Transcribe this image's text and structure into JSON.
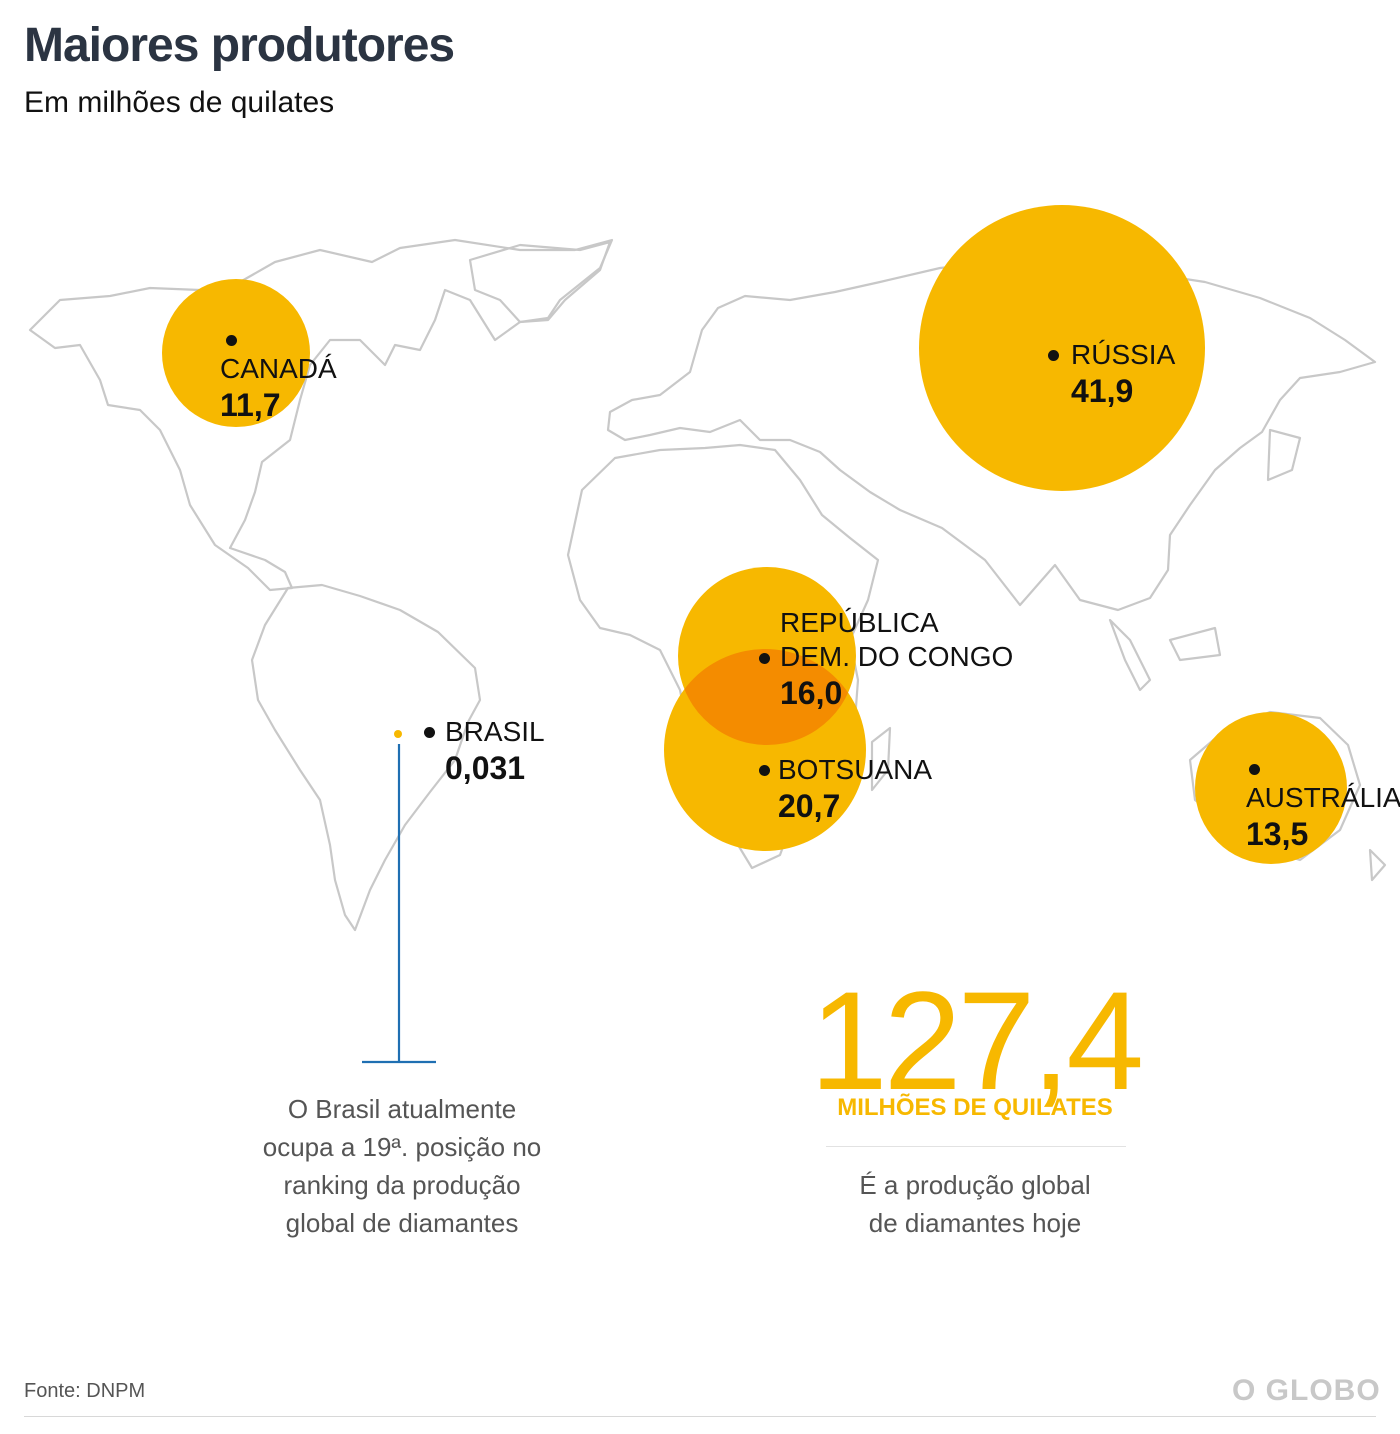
{
  "header": {
    "title": "Maiores produtores",
    "subtitle": "Em milhões de quilates"
  },
  "colors": {
    "bubble": "#f7b800",
    "overlap": "#f48c00",
    "land_outline": "#c8c8c8",
    "leader_line": "#1f6fb2",
    "brand_gray": "#c8c8c8"
  },
  "unit": "milhões de quilates",
  "producers": [
    {
      "id": "canada",
      "name_lines": [
        "CANADÁ"
      ],
      "value": "11,7"
    },
    {
      "id": "russia",
      "name_lines": [
        "RÚSSIA"
      ],
      "value": "41,9"
    },
    {
      "id": "congo",
      "name_lines": [
        "REPÚBLICA",
        "DEM. DO CONGO"
      ],
      "value": "16,0"
    },
    {
      "id": "botsuana",
      "name_lines": [
        "BOTSUANA"
      ],
      "value": "20,7"
    },
    {
      "id": "australia",
      "name_lines": [
        "AUSTRÁLIA"
      ],
      "value": "13,5"
    },
    {
      "id": "brasil",
      "name_lines": [
        "BRASIL"
      ],
      "value": "0,031"
    }
  ],
  "brasil_note": {
    "lines": [
      "O Brasil atualmente",
      "ocupa a 19ª. posição no",
      "ranking da produção",
      "global de diamantes"
    ]
  },
  "global_total": {
    "value": "127,4",
    "unit_label": "MILHÕES DE QUILATES",
    "description_lines": [
      "É a produção global",
      "de diamantes hoje"
    ]
  },
  "footer": {
    "source": "Fonte: DNPM",
    "brand": "O GLOBO"
  }
}
